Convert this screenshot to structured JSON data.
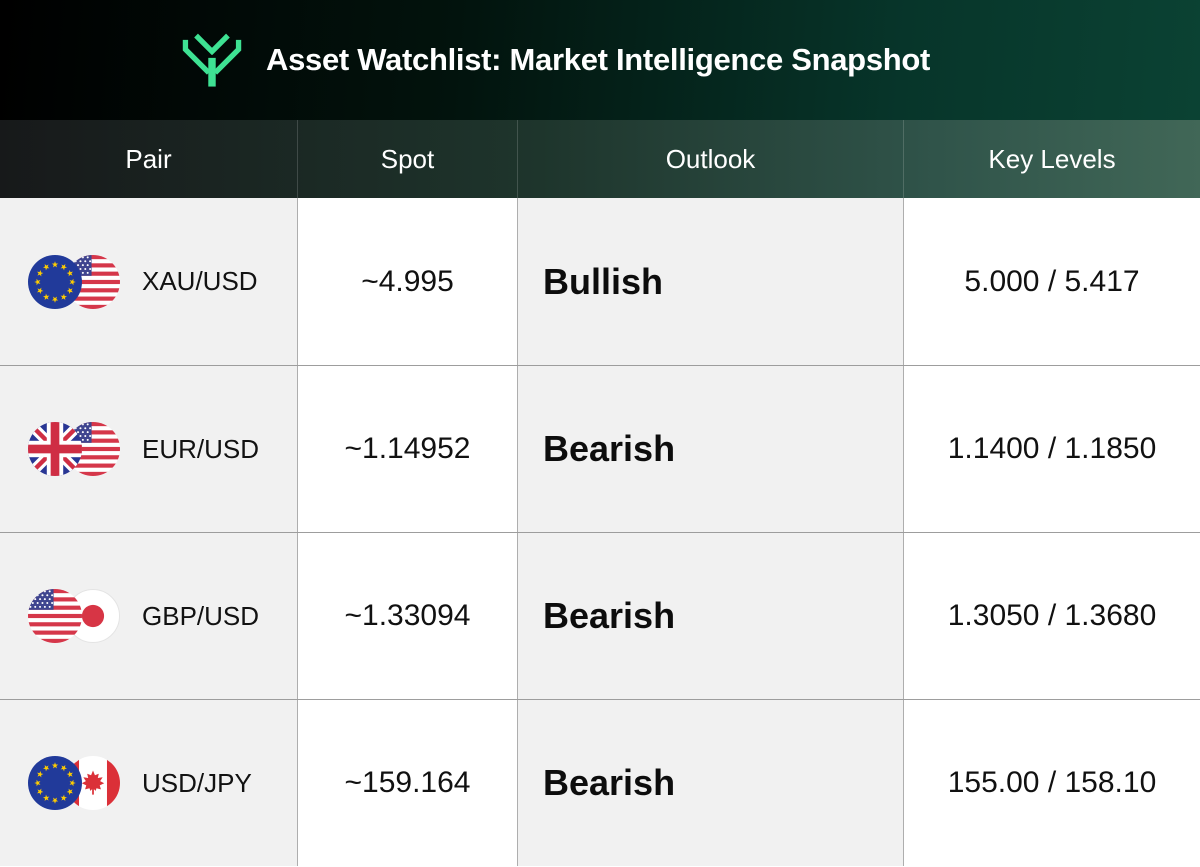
{
  "header": {
    "title": "Asset Watchlist: Market Intelligence Snapshot",
    "logo": "trident-y-logo"
  },
  "table": {
    "columns": [
      {
        "id": "pair",
        "label": "Pair"
      },
      {
        "id": "spot",
        "label": "Spot"
      },
      {
        "id": "outlook",
        "label": "Outlook"
      },
      {
        "id": "key_levels",
        "label": "Key Levels"
      }
    ],
    "rows": [
      {
        "pair": "XAU/USD",
        "flags": [
          "eu",
          "us"
        ],
        "spot": "~4.995",
        "outlook": "Bullish",
        "key_levels": "5.000 / 5.417"
      },
      {
        "pair": "EUR/USD",
        "flags": [
          "gb",
          "us"
        ],
        "spot": "~1.14952",
        "outlook": "Bearish",
        "key_levels": "1.1400 / 1.1850"
      },
      {
        "pair": "GBP/USD",
        "flags": [
          "us",
          "jp"
        ],
        "spot": "~1.33094",
        "outlook": "Bearish",
        "key_levels": "1.3050 / 1.3680"
      },
      {
        "pair": "USD/JPY",
        "flags": [
          "eu",
          "ca"
        ],
        "spot": "~159.164",
        "outlook": "Bearish",
        "key_levels": "155.00 / 158.10"
      }
    ]
  },
  "colors": {
    "accent_green": "#3ee293",
    "banner_left": "#000000",
    "banner_right": "#0b4233",
    "table_header_left": "#17191a",
    "table_header_right": "#416757",
    "stripe_gray": "#f1f1f1",
    "grid_line": "#9d9d9d"
  }
}
